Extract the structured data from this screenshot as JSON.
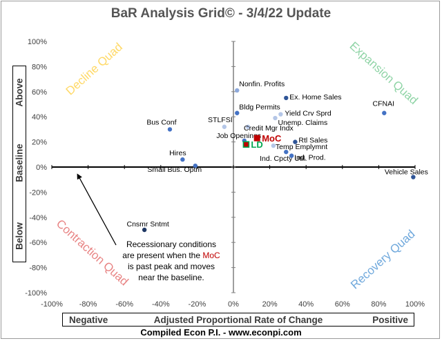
{
  "title": "BaR Analysis Grid© - 3/4/22 Update",
  "credit": "Compiled Econ P.I. - www.econpi.com",
  "x_label_box": {
    "left": "Negative",
    "middle": "Adjusted Proportional Rate of Change",
    "right": "Positive"
  },
  "y_label_box": {
    "top": "Above",
    "middle": "Baseline",
    "bottom": "Below"
  },
  "quadrants": {
    "decline": {
      "label": "Decline Quad",
      "color": "#FFD966"
    },
    "expansion": {
      "label": "Expansion Quad",
      "color": "#8FD4A6"
    },
    "contraction": {
      "label": "Contraction Quad",
      "color": "#E88484"
    },
    "recovery": {
      "label": "Recovery Quad",
      "color": "#6FA8DC"
    }
  },
  "annotation": {
    "line1": "Recessionary conditions",
    "line2a": "are present when the ",
    "line2b": "MoC",
    "line3": "is past peak and moves",
    "line4": "near the baseline."
  },
  "chart_data": {
    "type": "scatter",
    "title": "BaR Analysis Grid© - 3/4/22 Update",
    "xlabel": "Adjusted Proportional Rate of Change",
    "ylabel": "Baseline",
    "xlim": [
      -100,
      100
    ],
    "ylim": [
      -100,
      100
    ],
    "xticks": [
      -100,
      -80,
      -60,
      -40,
      -20,
      0,
      20,
      40,
      60,
      80,
      100
    ],
    "yticks": [
      -100,
      -80,
      -60,
      -40,
      -20,
      0,
      20,
      40,
      60,
      80,
      100
    ],
    "tick_suffix": "%",
    "grid": false,
    "points": [
      {
        "label": "Nonfin. Profits",
        "x": 2,
        "y": 61,
        "color": "#8EA9DB"
      },
      {
        "label": "Ex. Home Sales",
        "x": 29,
        "y": 55,
        "color": "#2F5597"
      },
      {
        "label": "Bldg Permits",
        "x": 2,
        "y": 43,
        "color": "#4472C4"
      },
      {
        "label": "Yield Crv Sprd",
        "x": 26,
        "y": 42,
        "color": "#B4C6E7"
      },
      {
        "label": "Unemp. Claims",
        "x": 23,
        "y": 39,
        "color": "#B4C6E7"
      },
      {
        "label": "CFNAI",
        "x": 83,
        "y": 43,
        "color": "#4472C4"
      },
      {
        "label": "Bus Conf",
        "x": -35,
        "y": 30,
        "color": "#4472C4"
      },
      {
        "label": "STLFSI",
        "x": -5,
        "y": 32,
        "color": "#B4C6E7"
      },
      {
        "label": "Credit Mgr Indx",
        "x": 8,
        "y": 32,
        "color": "#B4C6E7"
      },
      {
        "label": "Job Openings",
        "x": 6,
        "y": 21,
        "color": "#4472C4"
      },
      {
        "label": "Rtl Sales",
        "x": 34,
        "y": 20,
        "color": "#2F5597"
      },
      {
        "label": "Temp Emplymnt",
        "x": 22,
        "y": 17,
        "color": "#B4C6E7"
      },
      {
        "label": "Ind. Cpcty Util.",
        "x": 29,
        "y": 12,
        "color": "#4472C4"
      },
      {
        "label": "Ind. Prod.",
        "x": 32,
        "y": 9,
        "color": "#4472C4"
      },
      {
        "label": "Hires",
        "x": -28,
        "y": 6,
        "color": "#4472C4"
      },
      {
        "label": "Small Bus. Optm",
        "x": -21,
        "y": 1,
        "color": "#4472C4"
      },
      {
        "label": "Vehicle Sales",
        "x": 99,
        "y": -8,
        "color": "#2F5597"
      },
      {
        "label": "Cnsmr Sntmt",
        "x": -49,
        "y": -50,
        "color": "#1F3864"
      }
    ],
    "highlights": [
      {
        "label": "MoC",
        "x": 13,
        "y": 23,
        "color": "#C00000"
      },
      {
        "label": "LD",
        "x": 7,
        "y": 18,
        "color": "#00A650"
      }
    ]
  }
}
